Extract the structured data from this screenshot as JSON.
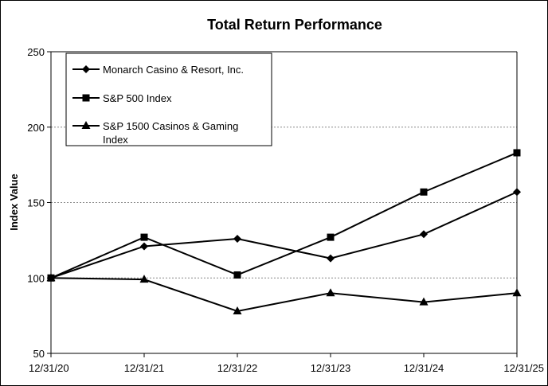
{
  "chart_data": {
    "type": "line",
    "title": "Total Return Performance",
    "xlabel": "",
    "ylabel": "Index Value",
    "ylim": [
      50,
      250
    ],
    "yticks": [
      50,
      100,
      150,
      200,
      250
    ],
    "grid": true,
    "legend_position": "top-left",
    "categories": [
      "12/31/20",
      "12/31/21",
      "12/31/22",
      "12/31/23",
      "12/31/24",
      "12/31/25"
    ],
    "series": [
      {
        "name": "Monarch Casino & Resort, Inc.",
        "marker": "diamond",
        "values": [
          100,
          121,
          126,
          113,
          129,
          157
        ]
      },
      {
        "name": "S&P 500 Index",
        "marker": "square",
        "values": [
          100,
          127,
          102,
          127,
          157,
          183
        ]
      },
      {
        "name": "S&P 1500 Casinos & Gaming Index",
        "marker": "triangle",
        "values": [
          100,
          99,
          78,
          90,
          84,
          90
        ]
      }
    ]
  }
}
